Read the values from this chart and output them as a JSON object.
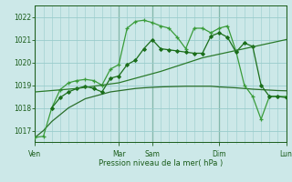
{
  "xlabel": "Pression niveau de la mer( hPa )",
  "ylim": [
    1016.5,
    1022.5
  ],
  "yticks": [
    1017,
    1018,
    1019,
    1020,
    1021,
    1022
  ],
  "background_color": "#cce8e8",
  "grid_color": "#99cccc",
  "line_color_dark": "#1a5c1a",
  "day_labels": [
    "Ven",
    "Mar",
    "Sam",
    "Dim",
    "Lun"
  ],
  "day_positions": [
    0,
    10,
    14,
    22,
    30
  ],
  "xlim": [
    0,
    30
  ],
  "minor_xtick_step": 1,
  "series": [
    {
      "x": [
        0,
        1,
        2,
        3,
        4,
        5,
        6,
        7,
        8,
        9,
        10,
        11,
        12,
        13,
        14,
        15,
        16,
        17,
        18,
        19,
        20,
        21,
        22,
        23,
        24,
        25,
        26,
        27,
        28,
        29,
        30
      ],
      "y": [
        1016.7,
        1017.0,
        1017.4,
        1017.7,
        1018.0,
        1018.2,
        1018.4,
        1018.5,
        1018.6,
        1018.7,
        1018.75,
        1018.8,
        1018.85,
        1018.88,
        1018.9,
        1018.92,
        1018.93,
        1018.94,
        1018.95,
        1018.95,
        1018.95,
        1018.95,
        1018.92,
        1018.9,
        1018.88,
        1018.85,
        1018.82,
        1018.8,
        1018.78,
        1018.76,
        1018.75
      ],
      "color": "#2a6e2a",
      "linewidth": 0.9,
      "marker": null,
      "linestyle": "-"
    },
    {
      "x": [
        0,
        1,
        2,
        3,
        4,
        5,
        6,
        7,
        8,
        9,
        10,
        11,
        12,
        13,
        14,
        15,
        16,
        17,
        18,
        19,
        20,
        21,
        22,
        23,
        24,
        25,
        26,
        27,
        28,
        29,
        30
      ],
      "y": [
        1016.7,
        1016.75,
        1018.0,
        1018.8,
        1019.1,
        1019.2,
        1019.25,
        1019.2,
        1019.0,
        1019.7,
        1019.9,
        1021.5,
        1021.8,
        1021.85,
        1021.75,
        1021.6,
        1021.5,
        1021.1,
        1020.6,
        1021.5,
        1021.5,
        1021.3,
        1021.5,
        1021.6,
        1020.5,
        1019.0,
        1018.5,
        1017.5,
        1018.5,
        1018.5,
        1018.5
      ],
      "color": "#3a9c3a",
      "linewidth": 0.9,
      "marker": "+",
      "markersize": 3.5,
      "markeredgewidth": 0.9,
      "linestyle": "-"
    },
    {
      "x": [
        2,
        3,
        4,
        5,
        6,
        7,
        8,
        9,
        10,
        11,
        12,
        13,
        14,
        15,
        16,
        17,
        18,
        19,
        20,
        21,
        22,
        23,
        24,
        25,
        26,
        27,
        28,
        29,
        30
      ],
      "y": [
        1018.0,
        1018.45,
        1018.7,
        1018.85,
        1018.95,
        1018.85,
        1018.7,
        1019.3,
        1019.4,
        1019.9,
        1020.1,
        1020.6,
        1021.0,
        1020.6,
        1020.55,
        1020.5,
        1020.45,
        1020.4,
        1020.4,
        1021.15,
        1021.3,
        1021.1,
        1020.45,
        1020.85,
        1020.7,
        1019.0,
        1018.5,
        1018.5,
        1018.45
      ],
      "color": "#1a6e1a",
      "linewidth": 0.9,
      "marker": "D",
      "markersize": 2.0,
      "markeredgewidth": 0.7,
      "linestyle": "-"
    },
    {
      "x": [
        0,
        5,
        10,
        15,
        20,
        25,
        30
      ],
      "y": [
        1018.7,
        1018.85,
        1019.1,
        1019.6,
        1020.2,
        1020.6,
        1021.0
      ],
      "color": "#2a7a2a",
      "linewidth": 0.9,
      "marker": null,
      "linestyle": "-"
    }
  ]
}
